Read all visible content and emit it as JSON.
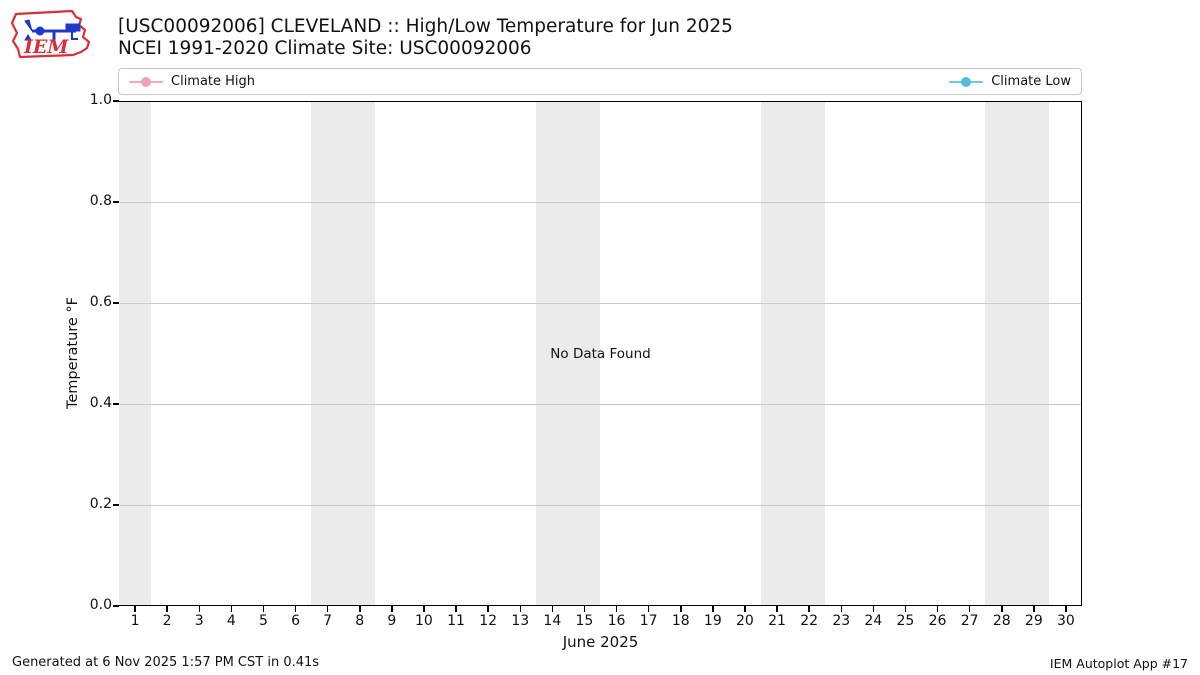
{
  "header": {
    "title_line1": "[USC00092006] CLEVELAND :: High/Low Temperature for Jun 2025",
    "title_line2": "NCEI 1991-2020 Climate Site: USC00092006",
    "logo_text": "IEM"
  },
  "legend": {
    "high_label": "Climate High",
    "low_label": "Climate Low"
  },
  "chart_data": {
    "type": "line",
    "title": "[USC00092006] CLEVELAND :: High/Low Temperature for Jun 2025",
    "subtitle": "NCEI 1991-2020 Climate Site: USC00092006",
    "xlabel": "June 2025",
    "ylabel": "Temperature °F",
    "annotation": "No Data Found",
    "xlim": [
      0.5,
      30.5
    ],
    "ylim": [
      0.0,
      1.0
    ],
    "x_ticks": [
      1,
      2,
      3,
      4,
      5,
      6,
      7,
      8,
      9,
      10,
      11,
      12,
      13,
      14,
      15,
      16,
      17,
      18,
      19,
      20,
      21,
      22,
      23,
      24,
      25,
      26,
      27,
      28,
      29,
      30
    ],
    "y_ticks": [
      0.0,
      0.2,
      0.4,
      0.6,
      0.8,
      1.0
    ],
    "grid": "horizontal",
    "legend_position": "top",
    "weekend_bands": [
      [
        0.5,
        1.5
      ],
      [
        6.5,
        8.5
      ],
      [
        13.5,
        15.5
      ],
      [
        20.5,
        22.5
      ],
      [
        27.5,
        29.5
      ]
    ],
    "band_color": "#ebebeb",
    "series": [
      {
        "name": "Climate High",
        "color": "#f5a9bc",
        "marker_color": "#f3a0b5",
        "values": []
      },
      {
        "name": "Climate Low",
        "color": "#74c6e6",
        "marker_color": "#58b8de",
        "values": []
      }
    ]
  },
  "footer": {
    "left": "Generated at 6 Nov 2025 1:57 PM CST in 0.41s",
    "right": "IEM Autoplot App #17"
  }
}
